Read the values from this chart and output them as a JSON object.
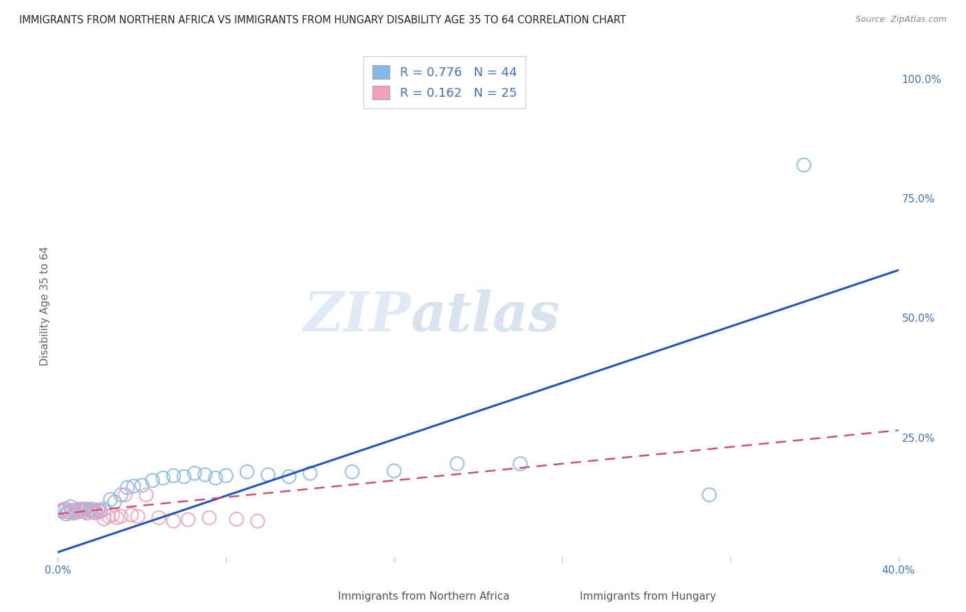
{
  "title": "IMMIGRANTS FROM NORTHERN AFRICA VS IMMIGRANTS FROM HUNGARY DISABILITY AGE 35 TO 64 CORRELATION CHART",
  "source": "Source: ZipAtlas.com",
  "ylabel": "Disability Age 35 to 64",
  "xlim": [
    0.0,
    0.4
  ],
  "ylim": [
    0.0,
    1.05
  ],
  "y_ticks_right": [
    0.0,
    0.25,
    0.5,
    0.75,
    1.0
  ],
  "y_tick_labels_right": [
    "",
    "25.0%",
    "50.0%",
    "75.0%",
    "100.0%"
  ],
  "x_ticks": [
    0.0,
    0.08,
    0.16,
    0.24,
    0.32,
    0.4
  ],
  "x_tick_labels": [
    "0.0%",
    "",
    "",
    "",
    "",
    "40.0%"
  ],
  "r_blue": 0.776,
  "n_blue": 44,
  "r_pink": 0.162,
  "n_pink": 25,
  "watermark_zip": "ZIP",
  "watermark_atlas": "atlas",
  "blue_scatter_x": [
    0.002,
    0.003,
    0.004,
    0.005,
    0.006,
    0.007,
    0.008,
    0.009,
    0.01,
    0.011,
    0.012,
    0.013,
    0.014,
    0.015,
    0.016,
    0.017,
    0.018,
    0.019,
    0.02,
    0.022,
    0.025,
    0.027,
    0.03,
    0.033,
    0.036,
    0.04,
    0.045,
    0.05,
    0.055,
    0.06,
    0.065,
    0.07,
    0.075,
    0.08,
    0.09,
    0.1,
    0.11,
    0.12,
    0.14,
    0.16,
    0.19,
    0.22,
    0.31,
    0.355
  ],
  "blue_scatter_y": [
    0.095,
    0.1,
    0.09,
    0.095,
    0.105,
    0.098,
    0.092,
    0.095,
    0.1,
    0.098,
    0.095,
    0.1,
    0.092,
    0.098,
    0.1,
    0.095,
    0.092,
    0.098,
    0.095,
    0.1,
    0.12,
    0.115,
    0.13,
    0.145,
    0.148,
    0.15,
    0.16,
    0.165,
    0.17,
    0.168,
    0.175,
    0.172,
    0.165,
    0.17,
    0.178,
    0.172,
    0.168,
    0.175,
    0.178,
    0.18,
    0.195,
    0.195,
    0.13,
    0.82
  ],
  "pink_scatter_x": [
    0.002,
    0.004,
    0.006,
    0.008,
    0.01,
    0.012,
    0.014,
    0.016,
    0.018,
    0.02,
    0.022,
    0.024,
    0.026,
    0.028,
    0.03,
    0.032,
    0.035,
    0.038,
    0.042,
    0.048,
    0.055,
    0.062,
    0.072,
    0.085,
    0.095
  ],
  "pink_scatter_y": [
    0.098,
    0.1,
    0.092,
    0.095,
    0.098,
    0.1,
    0.092,
    0.095,
    0.095,
    0.098,
    0.08,
    0.085,
    0.088,
    0.082,
    0.085,
    0.13,
    0.088,
    0.085,
    0.13,
    0.082,
    0.075,
    0.078,
    0.082,
    0.079,
    0.075
  ],
  "blue_line_x": [
    0.0,
    0.4
  ],
  "blue_line_y": [
    0.01,
    0.6
  ],
  "pink_line_x": [
    0.0,
    0.4
  ],
  "pink_line_y": [
    0.09,
    0.265
  ],
  "blue_scatter_color": "#85b8e8",
  "pink_scatter_color": "#f0a0b8",
  "blue_line_color": "#2255bb",
  "pink_line_color": "#d05070",
  "background_color": "#ffffff",
  "grid_color": "#cccccc",
  "legend_blue_label": "R = 0.776   N = 44",
  "legend_pink_label": "R = 0.162   N = 25",
  "bottom_label_blue": "Immigrants from Northern Africa",
  "bottom_label_pink": "Immigrants from Hungary"
}
